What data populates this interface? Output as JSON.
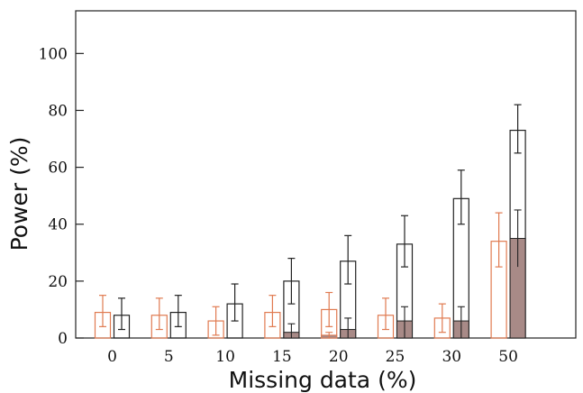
{
  "chart_data": {
    "type": "bar",
    "title": "",
    "xlabel": "Missing data (%)",
    "ylabel": "Power (%)",
    "ylim": [
      0,
      115
    ],
    "yticks": [
      0,
      20,
      40,
      60,
      80,
      100
    ],
    "categories": [
      "0",
      "5",
      "10",
      "15",
      "20",
      "25",
      "30",
      "50"
    ],
    "grid": false,
    "legend": "none",
    "series": [
      {
        "color": "#e07a50",
        "values": [
          9,
          8,
          6,
          9,
          10,
          8,
          7,
          34
        ],
        "err_low": [
          4,
          3,
          1,
          4,
          4,
          3,
          2,
          25
        ],
        "err_high": [
          15,
          14,
          11,
          15,
          16,
          14,
          12,
          44
        ],
        "filled_values": [
          0,
          0,
          0,
          0,
          1,
          0,
          0,
          0
        ],
        "filled_err_low": [
          0,
          0,
          0,
          0,
          0,
          0,
          0,
          0
        ],
        "filled_err_high": [
          0,
          0,
          0,
          0,
          2,
          0,
          0,
          0
        ]
      },
      {
        "color": "#222222",
        "values": [
          8,
          9,
          12,
          20,
          27,
          33,
          49,
          73
        ],
        "err_low": [
          3,
          4,
          6,
          12,
          19,
          25,
          40,
          65
        ],
        "err_high": [
          14,
          15,
          19,
          28,
          36,
          43,
          59,
          82
        ],
        "filled_values": [
          0,
          0,
          0,
          2,
          3,
          6,
          6,
          35
        ],
        "filled_err_low": [
          0,
          0,
          0,
          0,
          0,
          0,
          0,
          25
        ],
        "filled_err_high": [
          0,
          0,
          0,
          5,
          7,
          11,
          11,
          45
        ]
      }
    ],
    "fill_color": "#a88a87"
  }
}
